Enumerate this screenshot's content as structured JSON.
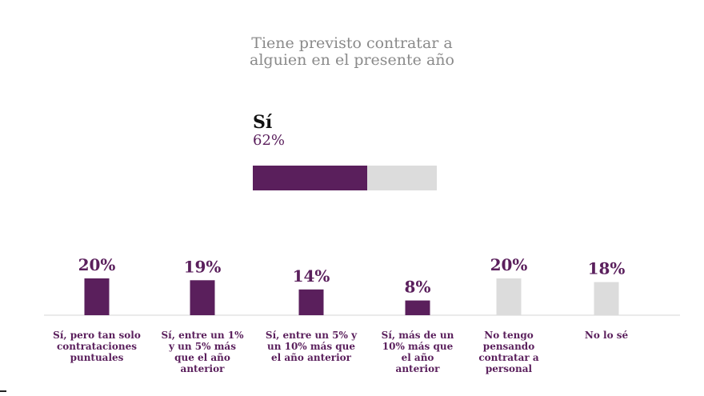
{
  "chart_data": {
    "title_lines": [
      "Tiene previsto contratar a",
      "alguien en el presente año"
    ],
    "summary": {
      "label": "Sí",
      "value_label": "62%",
      "value": 62,
      "max": 100
    },
    "type": "bar",
    "categories": [
      "Sí, pero tan solo contrataciones puntuales",
      "Sí, entre un 1% y un 5% más que el año anterior",
      "Sí, entre un 5% y un 10% más que el año anterior",
      "Sí, más de un 10% más que el año anterior",
      "No tengo pensando contratar a personal",
      "No lo sé"
    ],
    "values": [
      20,
      19,
      14,
      8,
      20,
      18
    ],
    "value_labels": [
      "20%",
      "19%",
      "14%",
      "8%",
      "20%",
      "18%"
    ],
    "ylim": [
      0,
      20
    ],
    "colors": [
      "#5a1f5c",
      "#5a1f5c",
      "#5a1f5c",
      "#5a1f5c",
      "#dcdcdc",
      "#dcdcdc"
    ],
    "label_colors": [
      "#5a1f5c",
      "#5a1f5c",
      "#5a1f5c",
      "#5a1f5c",
      "#5a1f5c",
      "#5a1f5c"
    ],
    "value_label_colors": [
      "#5a1f5c",
      "#5a1f5c",
      "#5a1f5c",
      "#5a1f5c",
      "#5a1f5c",
      "#5a1f5c"
    ]
  }
}
